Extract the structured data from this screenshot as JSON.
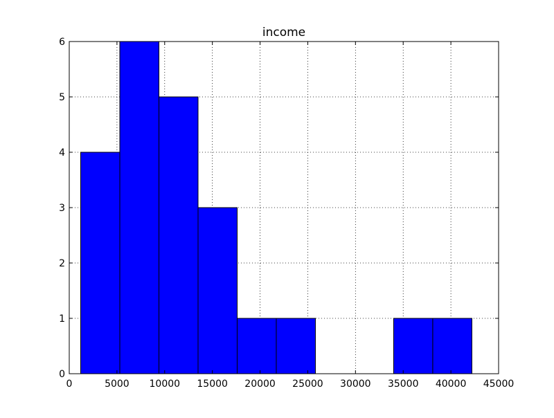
{
  "chart_data": {
    "type": "bar",
    "title": "income",
    "xlabel": "",
    "ylabel": "",
    "xlim": [
      0,
      45000
    ],
    "ylim": [
      0,
      6
    ],
    "grid": true,
    "bar_color": "#0000ff",
    "x_ticks": [
      0,
      5000,
      10000,
      15000,
      20000,
      25000,
      30000,
      35000,
      40000,
      45000
    ],
    "x_tick_labels": [
      "0",
      "5000",
      "10000",
      "15000",
      "20000",
      "25000",
      "30000",
      "35000",
      "40000",
      "45000"
    ],
    "y_ticks": [
      0,
      1,
      2,
      3,
      4,
      5,
      6
    ],
    "y_tick_labels": [
      "0",
      "1",
      "2",
      "3",
      "4",
      "5",
      "6"
    ],
    "bin_edges": [
      1200,
      5300,
      9400,
      13500,
      17600,
      21700,
      25800,
      29900,
      34000,
      38100,
      42200
    ],
    "counts": [
      4,
      6,
      5,
      3,
      1,
      1,
      0,
      0,
      1,
      1
    ]
  }
}
